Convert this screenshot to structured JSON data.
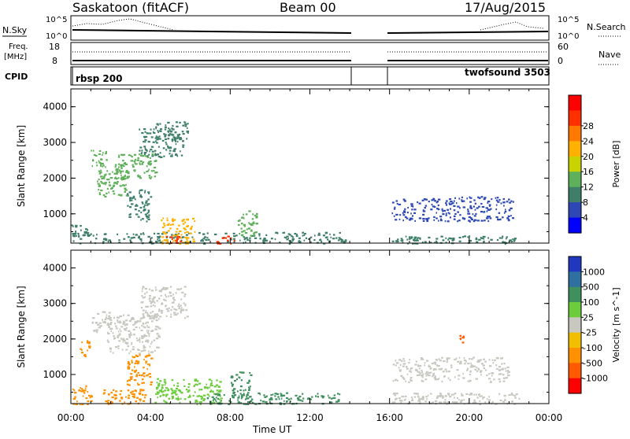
{
  "header": {
    "station": "Saskatoon (fitACF)",
    "beam": "Beam 00",
    "date": "17/Aug/2015"
  },
  "top_panels": {
    "nsky_label": "N.Sky",
    "nsky_ticks": [
      "10^5",
      "10^0"
    ],
    "nsearch_label": "N.Search",
    "nsearch_ticks": [
      "10^5",
      "10^0"
    ],
    "freq_label_1": "Freq.",
    "freq_label_2": "[MHz]",
    "freq_ticks": [
      "18",
      "8"
    ],
    "nave_label": "Nave",
    "nave_ticks": [
      "60",
      "0"
    ],
    "cpid_label": "CPID",
    "cpid_left": "rbsp 200",
    "cpid_right": "twofsound 3503"
  },
  "axes": {
    "ylabel": "Slant Range [km]",
    "xlabel": "Time UT",
    "y_ticks": [
      "1000",
      "2000",
      "3000",
      "4000"
    ],
    "x_ticks": [
      "00:00",
      "04:00",
      "08:00",
      "12:00",
      "16:00",
      "20:00",
      "00:00"
    ]
  },
  "colorbars": {
    "power": {
      "label": "Power [dB]",
      "ticks": [
        "4",
        "8",
        "12",
        "16",
        "20",
        "24",
        "28"
      ],
      "colors": [
        "#0000ff",
        "#2d48b4",
        "#3f7f6a",
        "#5fb05a",
        "#c8d400",
        "#ffb000",
        "#ff7800",
        "#ff3000",
        "#ff0000"
      ]
    },
    "velocity": {
      "label": "Velocity [m s^-1]",
      "ticks": [
        "1000",
        "500",
        "100",
        "25",
        "-25",
        "-100",
        "-500",
        "-1000"
      ],
      "colors": [
        "#2038c0",
        "#3070a0",
        "#3f8f5f",
        "#6ccc3c",
        "#c8c8c0",
        "#f0c000",
        "#ff9000",
        "#ff5a00",
        "#ff0000"
      ]
    }
  },
  "chart_data": [
    {
      "type": "heatmap",
      "name": "Power",
      "x_unit": "hours UT",
      "y_unit": "km",
      "xlim": [
        0,
        24
      ],
      "ylim": [
        180,
        4500
      ],
      "data_gap_hours": [
        14,
        16
      ],
      "regions": [
        {
          "t": [
            0.0,
            13.8
          ],
          "r": [
            180,
            500
          ],
          "value_db": 10
        },
        {
          "t": [
            0.0,
            0.9
          ],
          "r": [
            350,
            700
          ],
          "value_db": 9
        },
        {
          "t": [
            1.0,
            1.8
          ],
          "r": [
            2300,
            2800
          ],
          "value_db": 12
        },
        {
          "t": [
            1.3,
            2.8
          ],
          "r": [
            1500,
            2400
          ],
          "value_db": 12
        },
        {
          "t": [
            2.2,
            4.3
          ],
          "r": [
            2000,
            2700
          ],
          "value_db": 12
        },
        {
          "t": [
            3.4,
            5.6
          ],
          "r": [
            2600,
            3400
          ],
          "value_db": 11
        },
        {
          "t": [
            4.2,
            5.9
          ],
          "r": [
            3100,
            3600
          ],
          "value_db": 8
        },
        {
          "t": [
            2.8,
            4.0
          ],
          "r": [
            800,
            1700
          ],
          "value_db": 8
        },
        {
          "t": [
            4.5,
            6.2
          ],
          "r": [
            180,
            900
          ],
          "value_db": 22
        },
        {
          "t": [
            4.7,
            5.5
          ],
          "r": [
            180,
            400
          ],
          "value_db": 30
        },
        {
          "t": [
            7.3,
            8.2
          ],
          "r": [
            180,
            400
          ],
          "value_db": 28
        },
        {
          "t": [
            8.3,
            9.3
          ],
          "r": [
            400,
            1100
          ],
          "value_db": 12
        },
        {
          "t": [
            16.1,
            22.2
          ],
          "r": [
            800,
            1500
          ],
          "value_db": 6
        },
        {
          "t": [
            16.1,
            22.5
          ],
          "r": [
            180,
            400
          ],
          "value_db": 8
        }
      ]
    },
    {
      "type": "heatmap",
      "name": "Velocity",
      "x_unit": "hours UT",
      "y_unit": "km",
      "xlim": [
        0,
        24
      ],
      "ylim": [
        180,
        4500
      ],
      "data_gap_hours": [
        14,
        16
      ],
      "regions": [
        {
          "t": [
            0.0,
            1.0
          ],
          "r": [
            180,
            700
          ],
          "value_ms": -150
        },
        {
          "t": [
            1.0,
            2.0
          ],
          "r": [
            2200,
            2800
          ],
          "value_ms": 0
        },
        {
          "t": [
            1.8,
            4.4
          ],
          "r": [
            1600,
            2700
          ],
          "value_ms": 0
        },
        {
          "t": [
            3.5,
            5.8
          ],
          "r": [
            2600,
            3500
          ],
          "value_ms": 0
        },
        {
          "t": [
            0.4,
            0.9
          ],
          "r": [
            1500,
            2000
          ],
          "value_ms": -400
        },
        {
          "t": [
            2.8,
            4.0
          ],
          "r": [
            700,
            1600
          ],
          "value_ms": -200
        },
        {
          "t": [
            1.6,
            3.8
          ],
          "r": [
            180,
            600
          ],
          "value_ms": -120
        },
        {
          "t": [
            4.2,
            7.5
          ],
          "r": [
            180,
            900
          ],
          "value_ms": 60
        },
        {
          "t": [
            6.8,
            13.5
          ],
          "r": [
            180,
            500
          ],
          "value_ms": 150
        },
        {
          "t": [
            8.0,
            9.0
          ],
          "r": [
            400,
            1100
          ],
          "value_ms": 300
        },
        {
          "t": [
            16.1,
            22.0
          ],
          "r": [
            800,
            1500
          ],
          "value_ms": 0
        },
        {
          "t": [
            16.1,
            22.5
          ],
          "r": [
            180,
            500
          ],
          "value_ms": 0
        },
        {
          "t": [
            19.5,
            19.7
          ],
          "r": [
            1900,
            2150
          ],
          "value_ms": -1000
        }
      ]
    }
  ]
}
